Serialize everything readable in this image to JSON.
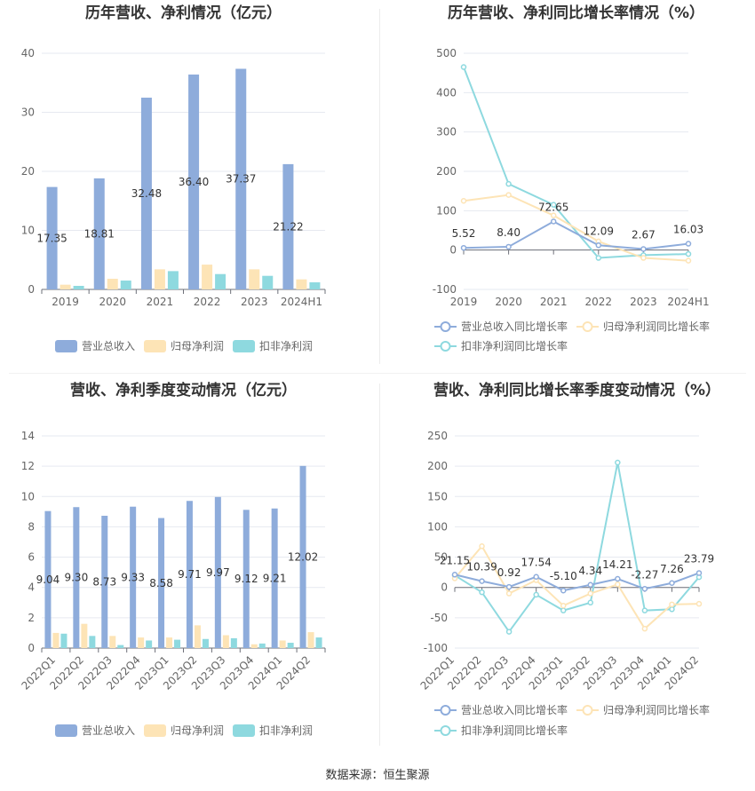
{
  "colors": {
    "revenue": "#8eacdb",
    "parent_profit": "#fde4b6",
    "deducted_profit": "#8ed9df",
    "axis_text": "#666666",
    "grid": "#e6e9f0",
    "title": "#333333"
  },
  "chart_data": [
    {
      "id": "annual-bars",
      "type": "bar",
      "title": "历年营收、净利情况（亿元）",
      "categories": [
        "2019",
        "2020",
        "2021",
        "2022",
        "2023",
        "2024H1"
      ],
      "ylim": [
        0,
        40
      ],
      "yticks": [
        0,
        10,
        20,
        30,
        40
      ],
      "series": [
        {
          "name": "营业总收入",
          "values": [
            17.35,
            18.81,
            32.48,
            36.4,
            37.37,
            21.22
          ],
          "labels": [
            "17.35",
            "18.81",
            "32.48",
            "36.40",
            "37.37",
            "21.22"
          ]
        },
        {
          "name": "归母净利润",
          "values": [
            0.8,
            1.8,
            3.4,
            4.2,
            3.4,
            1.7
          ]
        },
        {
          "name": "扣非净利润",
          "values": [
            0.6,
            1.5,
            3.1,
            2.6,
            2.3,
            1.2
          ]
        }
      ]
    },
    {
      "id": "annual-lines",
      "type": "line",
      "title": "历年营收、净利同比增长率情况（%）",
      "categories": [
        "2019",
        "2020",
        "2021",
        "2022",
        "2023",
        "2024H1"
      ],
      "ylim": [
        -100,
        500
      ],
      "yticks": [
        -100,
        0,
        100,
        200,
        300,
        400,
        500
      ],
      "series": [
        {
          "name": "营业总收入同比增长率",
          "values": [
            5.52,
            8.4,
            72.65,
            12.09,
            2.67,
            16.03
          ],
          "labels": [
            "5.52",
            "8.40",
            "72.65",
            "12.09",
            "2.67",
            "16.03"
          ]
        },
        {
          "name": "归母净利润同比增长率",
          "values": [
            125,
            140,
            88,
            22,
            -20,
            -27
          ]
        },
        {
          "name": "扣非净利润同比增长率",
          "values": [
            465,
            168,
            115,
            -20,
            -13,
            -10
          ]
        }
      ]
    },
    {
      "id": "quarter-bars",
      "type": "bar",
      "title": "营收、净利季度变动情况（亿元）",
      "categories": [
        "2022Q1",
        "2022Q2",
        "2022Q3",
        "2022Q4",
        "2023Q1",
        "2023Q2",
        "2023Q3",
        "2023Q4",
        "2024Q1",
        "2024Q2"
      ],
      "ylim": [
        0,
        14
      ],
      "yticks": [
        0,
        2,
        4,
        6,
        8,
        10,
        12,
        14
      ],
      "series": [
        {
          "name": "营业总收入",
          "values": [
            9.04,
            9.3,
            8.73,
            9.33,
            8.58,
            9.71,
            9.97,
            9.12,
            9.21,
            12.02
          ],
          "labels": [
            "9.04",
            "9.30",
            "8.73",
            "9.33",
            "8.58",
            "9.71",
            "9.97",
            "9.12",
            "9.21",
            "12.02"
          ]
        },
        {
          "name": "归母净利润",
          "values": [
            1.0,
            1.6,
            0.8,
            0.7,
            0.7,
            1.5,
            0.85,
            0.25,
            0.5,
            1.05
          ]
        },
        {
          "name": "扣非净利润",
          "values": [
            0.95,
            0.8,
            0.2,
            0.5,
            0.55,
            0.6,
            0.65,
            0.3,
            0.35,
            0.7
          ]
        }
      ]
    },
    {
      "id": "quarter-lines",
      "type": "line",
      "title": "营收、净利同比增长率季度变动情况（%）",
      "categories": [
        "2022Q1",
        "2022Q2",
        "2022Q3",
        "2022Q4",
        "2023Q1",
        "2023Q2",
        "2023Q3",
        "2023Q4",
        "2024Q1",
        "2024Q2"
      ],
      "ylim": [
        -100,
        250
      ],
      "yticks": [
        -100,
        -50,
        0,
        50,
        100,
        150,
        200,
        250
      ],
      "series": [
        {
          "name": "营业总收入同比增长率",
          "values": [
            21.15,
            10.39,
            0.92,
            17.54,
            -5.1,
            4.34,
            14.21,
            -2.27,
            7.26,
            23.79
          ],
          "labels": [
            "21.15",
            "10.39",
            "0.92",
            "17.54",
            "-5.10",
            "4.34",
            "14.21",
            "-2.27",
            "7.26",
            "23.79"
          ]
        },
        {
          "name": "归母净利润同比增长率",
          "values": [
            15,
            68,
            -10,
            12,
            -30,
            -10,
            5,
            -68,
            -28,
            -27
          ]
        },
        {
          "name": "扣非净利润同比增长率",
          "values": [
            20,
            -8,
            -73,
            -12,
            -38,
            -25,
            206,
            -38,
            -36,
            17
          ]
        }
      ]
    }
  ],
  "source": "数据来源：恒生聚源"
}
